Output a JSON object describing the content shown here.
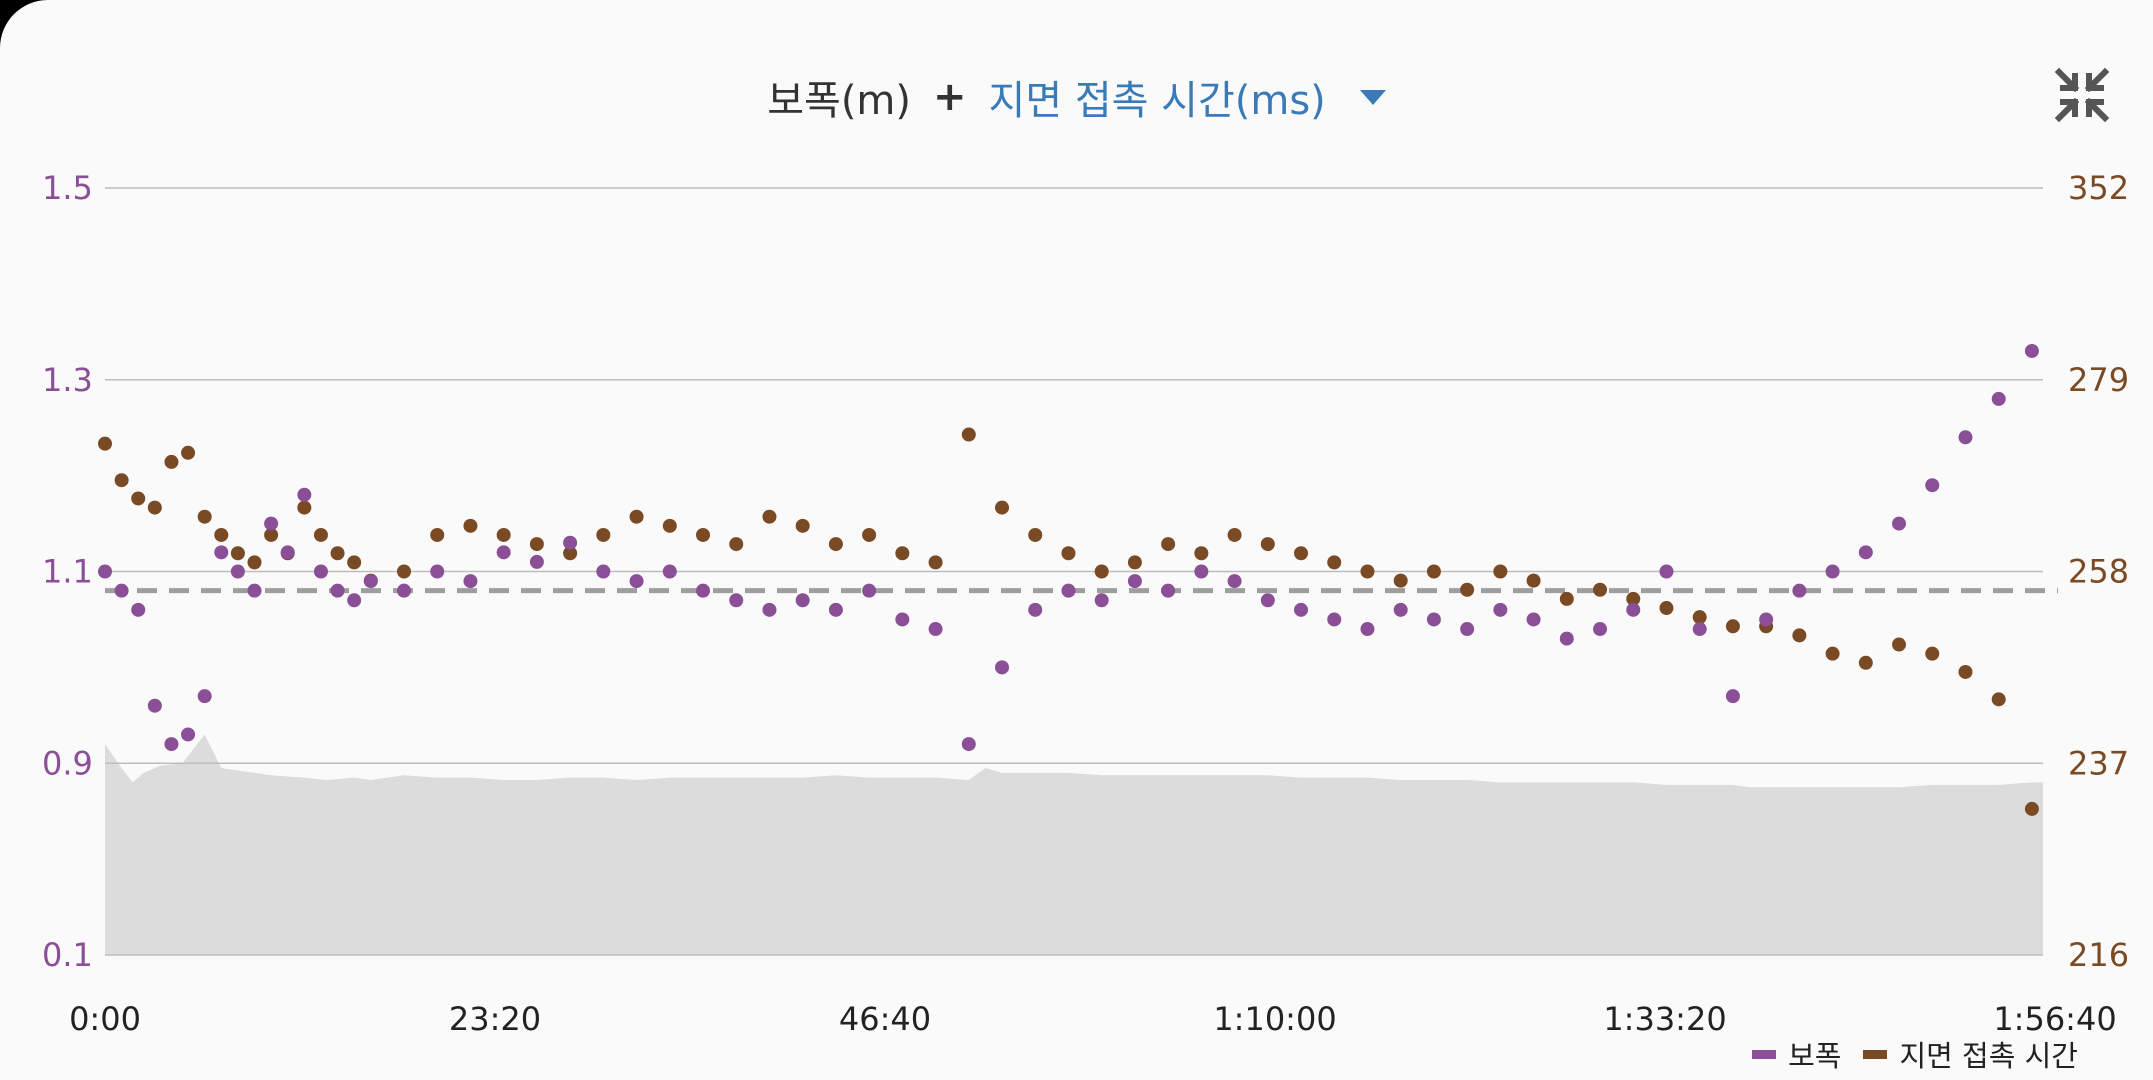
{
  "header": {
    "metric_primary": "보폭(m)",
    "plus": "+",
    "metric_secondary": "지면 접촉 시간(ms)"
  },
  "icons": {
    "collapse": "collapse-arrows-icon",
    "dropdown": "caret-down-icon"
  },
  "colors": {
    "stride": "#8a4f96",
    "contact": "#7a4a25",
    "elevation": "#dcdcdc",
    "reference": "#9e9e9e"
  },
  "chart_data": {
    "type": "scatter",
    "x_ticks": [
      "0:00",
      "23:20",
      "46:40",
      "1:10:00",
      "1:33:20",
      "1:56:40"
    ],
    "x_range_seconds": [
      0,
      7000
    ],
    "left_axis": {
      "ticks": [
        "1.5",
        "1.3",
        "1.1",
        "0.9",
        "0.1"
      ]
    },
    "right_axis": {
      "ticks": [
        "352",
        "279",
        "258",
        "237",
        "216"
      ]
    },
    "reference_line": {
      "left_value": 1.08,
      "style": "dashed"
    },
    "grid": true,
    "legend_position": "bottom-right",
    "series": [
      {
        "name": "보폭",
        "axis": "left",
        "x": [
          0,
          60,
          120,
          180,
          240,
          300,
          360,
          420,
          480,
          540,
          600,
          660,
          720,
          780,
          840,
          900,
          960,
          1080,
          1200,
          1320,
          1440,
          1560,
          1680,
          1800,
          1920,
          2040,
          2160,
          2280,
          2400,
          2520,
          2640,
          2760,
          2880,
          3000,
          3120,
          3240,
          3360,
          3480,
          3600,
          3720,
          3840,
          3960,
          4080,
          4200,
          4320,
          4440,
          4560,
          4680,
          4800,
          4920,
          5040,
          5160,
          5280,
          5400,
          5520,
          5640,
          5760,
          5880,
          6000,
          6120,
          6240,
          6360,
          6480,
          6600,
          6720,
          6840,
          6960
        ],
        "y": [
          1.1,
          1.08,
          1.06,
          0.96,
          0.92,
          0.93,
          0.97,
          1.12,
          1.1,
          1.08,
          1.15,
          1.12,
          1.18,
          1.1,
          1.08,
          1.07,
          1.09,
          1.08,
          1.1,
          1.09,
          1.12,
          1.11,
          1.13,
          1.1,
          1.09,
          1.1,
          1.08,
          1.07,
          1.06,
          1.07,
          1.06,
          1.08,
          1.05,
          1.04,
          0.92,
          1.0,
          1.06,
          1.08,
          1.07,
          1.09,
          1.08,
          1.1,
          1.09,
          1.07,
          1.06,
          1.05,
          1.04,
          1.06,
          1.05,
          1.04,
          1.06,
          1.05,
          1.03,
          1.04,
          1.06,
          1.1,
          1.04,
          0.97,
          1.05,
          1.08,
          1.1,
          1.12,
          1.15,
          1.19,
          1.24,
          1.28,
          1.33
        ]
      },
      {
        "name": "지면 접촉 시간",
        "axis": "right",
        "x": [
          0,
          60,
          120,
          180,
          240,
          300,
          360,
          420,
          480,
          540,
          600,
          660,
          720,
          780,
          840,
          900,
          960,
          1080,
          1200,
          1320,
          1440,
          1560,
          1680,
          1800,
          1920,
          2040,
          2160,
          2280,
          2400,
          2520,
          2640,
          2760,
          2880,
          3000,
          3120,
          3240,
          3360,
          3480,
          3600,
          3720,
          3840,
          3960,
          4080,
          4200,
          4320,
          4440,
          4560,
          4680,
          4800,
          4920,
          5040,
          5160,
          5280,
          5400,
          5520,
          5640,
          5760,
          5880,
          6000,
          6120,
          6240,
          6360,
          6480,
          6600,
          6720,
          6840,
          6960
        ],
        "y": [
          272,
          268,
          266,
          265,
          270,
          271,
          264,
          262,
          260,
          259,
          262,
          260,
          265,
          262,
          260,
          259,
          257,
          258,
          262,
          263,
          262,
          261,
          260,
          262,
          264,
          263,
          262,
          261,
          264,
          263,
          261,
          262,
          260,
          259,
          273,
          265,
          262,
          260,
          258,
          259,
          261,
          260,
          262,
          261,
          260,
          259,
          258,
          257,
          258,
          256,
          258,
          257,
          255,
          256,
          255,
          254,
          253,
          252,
          252,
          251,
          249,
          248,
          250,
          249,
          247,
          244,
          232
        ]
      }
    ],
    "elevation_profile": {
      "x": [
        0,
        60,
        100,
        140,
        200,
        280,
        360,
        420,
        480,
        540,
        600,
        720,
        800,
        900,
        960,
        1080,
        1200,
        1320,
        1440,
        1560,
        1680,
        1800,
        1920,
        2040,
        2160,
        2280,
        2400,
        2520,
        2640,
        2760,
        2880,
        3000,
        3120,
        3180,
        3240,
        3360,
        3480,
        3600,
        3720,
        3840,
        3960,
        4080,
        4200,
        4320,
        4440,
        4560,
        4680,
        4800,
        4920,
        5040,
        5160,
        5280,
        5400,
        5520,
        5640,
        5760,
        5880,
        5940,
        6000,
        6120,
        6240,
        6360,
        6480,
        6600,
        6720,
        6840,
        6960,
        7000
      ],
      "y": [
        0.92,
        0.88,
        0.82,
        0.86,
        0.89,
        0.9,
        0.93,
        0.88,
        0.87,
        0.86,
        0.85,
        0.84,
        0.83,
        0.84,
        0.83,
        0.85,
        0.84,
        0.84,
        0.83,
        0.83,
        0.84,
        0.84,
        0.83,
        0.84,
        0.84,
        0.84,
        0.84,
        0.84,
        0.85,
        0.84,
        0.84,
        0.84,
        0.83,
        0.88,
        0.86,
        0.86,
        0.86,
        0.85,
        0.85,
        0.85,
        0.85,
        0.85,
        0.85,
        0.84,
        0.84,
        0.84,
        0.83,
        0.83,
        0.83,
        0.82,
        0.82,
        0.82,
        0.82,
        0.82,
        0.81,
        0.81,
        0.81,
        0.8,
        0.8,
        0.8,
        0.8,
        0.8,
        0.8,
        0.81,
        0.81,
        0.81,
        0.82,
        0.82
      ]
    }
  },
  "legend": {
    "stride": "보폭",
    "contact": "지면 접촉 시간"
  }
}
